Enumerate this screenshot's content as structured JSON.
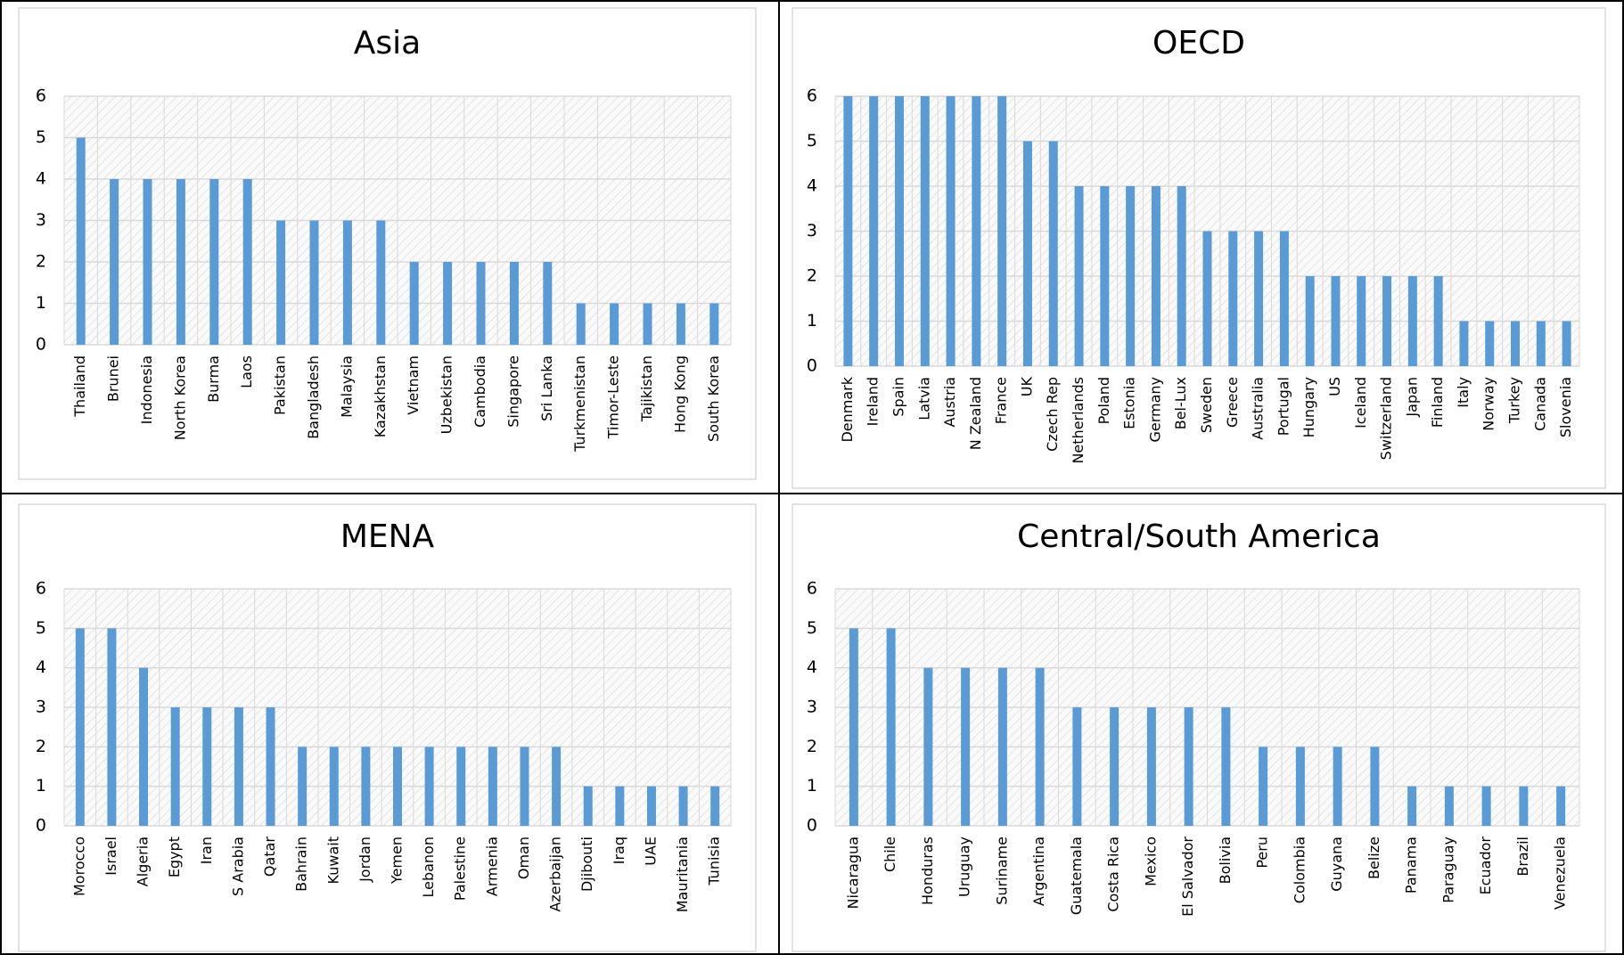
{
  "chart_data": [
    {
      "type": "bar",
      "title": "Asia",
      "color": "#5b9bd5",
      "ylim": [
        0,
        6
      ],
      "yticks": [
        0,
        1,
        2,
        3,
        4,
        5,
        6
      ],
      "grid": true,
      "categories": [
        "Thailand",
        "Brunei",
        "Indonesia",
        "North Korea",
        "Burma",
        "Laos",
        "Pakistan",
        "Bangladesh",
        "Malaysia",
        "Kazakhstan",
        "Vietnam",
        "Uzbekistan",
        "Cambodia",
        "Singapore",
        "Sri Lanka",
        "Turkmenistan",
        "Timor-Leste",
        "Tajikistan",
        "Hong Kong",
        "South Korea"
      ],
      "values": [
        5,
        4,
        4,
        4,
        4,
        4,
        3,
        3,
        3,
        3,
        2,
        2,
        2,
        2,
        2,
        1,
        1,
        1,
        1,
        1
      ]
    },
    {
      "type": "bar",
      "title": "OECD",
      "color": "#5b9bd5",
      "ylim": [
        0,
        6
      ],
      "yticks": [
        0,
        1,
        2,
        3,
        4,
        5,
        6
      ],
      "grid": true,
      "categories": [
        "Denmark",
        "Ireland",
        "Spain",
        "Latvia",
        "Austria",
        "N Zealand",
        "France",
        "UK",
        "Czech Rep",
        "Netherlands",
        "Poland",
        "Estonia",
        "Germany",
        "Bel-Lux",
        "Sweden",
        "Greece",
        "Australia",
        "Portugal",
        "Hungary",
        "US",
        "Iceland",
        "Switzerland",
        "Japan",
        "Finland",
        "Italy",
        "Norway",
        "Turkey",
        "Canada",
        "Slovenia"
      ],
      "values": [
        6,
        6,
        6,
        6,
        6,
        6,
        6,
        5,
        5,
        4,
        4,
        4,
        4,
        4,
        3,
        3,
        3,
        3,
        2,
        2,
        2,
        2,
        2,
        2,
        1,
        1,
        1,
        1,
        1
      ]
    },
    {
      "type": "bar",
      "title": "MENA",
      "color": "#5b9bd5",
      "ylim": [
        0,
        6
      ],
      "yticks": [
        0,
        1,
        2,
        3,
        4,
        5,
        6
      ],
      "grid": true,
      "categories": [
        "Morocco",
        "Israel",
        "Algeria",
        "Egypt",
        "Iran",
        "S Arabia",
        "Qatar",
        "Bahrain",
        "Kuwait",
        "Jordan",
        "Yemen",
        "Lebanon",
        "Palestine",
        "Armenia",
        "Oman",
        "Azerbaijan",
        "Djibouti",
        "Iraq",
        "UAE",
        "Mauritania",
        "Tunisia"
      ],
      "values": [
        5,
        5,
        4,
        3,
        3,
        3,
        3,
        2,
        2,
        2,
        2,
        2,
        2,
        2,
        2,
        2,
        1,
        1,
        1,
        1,
        1
      ]
    },
    {
      "type": "bar",
      "title": "Central/South America",
      "color": "#5b9bd5",
      "ylim": [
        0,
        6
      ],
      "yticks": [
        0,
        1,
        2,
        3,
        4,
        5,
        6
      ],
      "grid": true,
      "categories": [
        "Nicaragua",
        "Chile",
        "Honduras",
        "Uruguay",
        "Suriname",
        "Argentina",
        "Guatemala",
        "Costa Rica",
        "Mexico",
        "El Salvador",
        "Bolivia",
        "Peru",
        "Colombia",
        "Guyana",
        "Belize",
        "Panama",
        "Paraguay",
        "Ecuador",
        "Brazil",
        "Venezuela"
      ],
      "values": [
        5,
        5,
        4,
        4,
        4,
        4,
        3,
        3,
        3,
        3,
        3,
        2,
        2,
        2,
        2,
        1,
        1,
        1,
        1,
        1
      ]
    }
  ]
}
